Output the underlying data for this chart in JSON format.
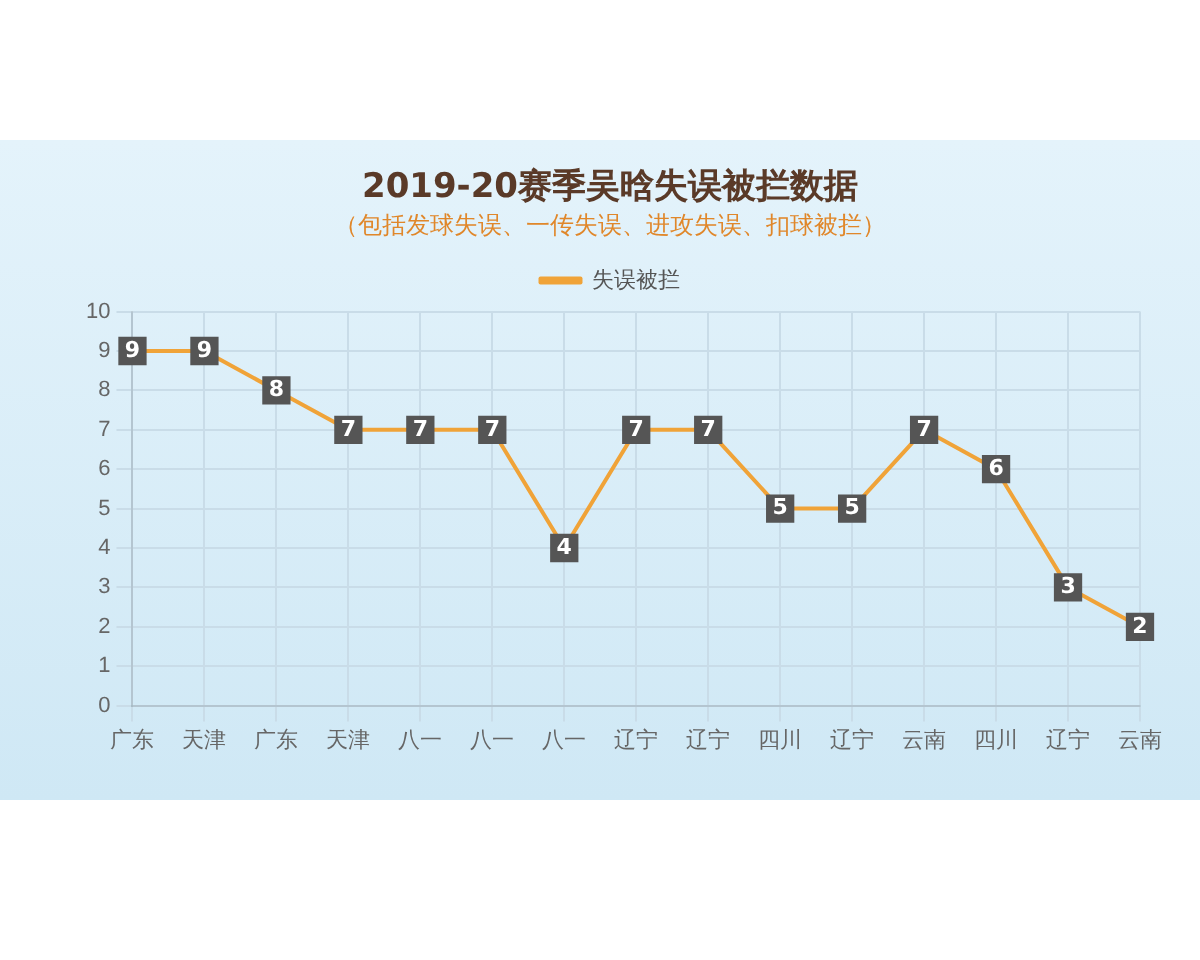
{
  "chart_data": {
    "type": "line",
    "title": "2019-20赛季吴晗失误被拦数据",
    "subtitle": "（包括发球失误、一传失误、进攻失误、扣球被拦）",
    "categories": [
      "广东",
      "天津",
      "广东",
      "天津",
      "八一",
      "八一",
      "八一",
      "辽宁",
      "辽宁",
      "四川",
      "辽宁",
      "云南",
      "四川",
      "辽宁",
      "云南"
    ],
    "series": [
      {
        "name": "失误被拦",
        "color": "#f0a338",
        "values": [
          9,
          9,
          8,
          7,
          7,
          7,
          4,
          7,
          7,
          5,
          5,
          7,
          6,
          3,
          2
        ]
      }
    ],
    "ylim": [
      0,
      10
    ],
    "yticks": [
      0,
      1,
      2,
      3,
      4,
      5,
      6,
      7,
      8,
      9,
      10
    ],
    "grid": true,
    "legend": "top",
    "marker": "square",
    "data_labels": true
  }
}
